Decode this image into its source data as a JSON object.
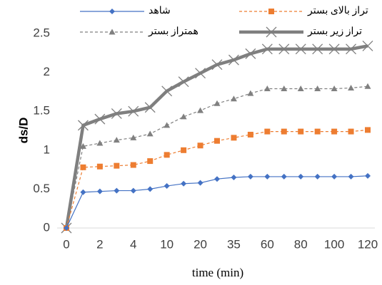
{
  "chart_data": {
    "type": "line",
    "x_label": "time (min)",
    "y_label": "ds/D",
    "categories": [
      "0",
      null,
      "2",
      null,
      "4",
      null,
      "10",
      null,
      "20",
      null,
      "35",
      null,
      "60",
      null,
      "80",
      null,
      "100",
      null,
      "120"
    ],
    "ylim": [
      0,
      2.5
    ],
    "yticks": [
      0,
      0.5,
      1,
      1.5,
      2,
      2.5
    ],
    "grid": false,
    "legend": "top",
    "series": [
      {
        "name": "شاهد",
        "color": "#4472c4",
        "marker": "diamond",
        "dash": "solid",
        "width": 1.2,
        "values": [
          0,
          0.46,
          0.47,
          0.48,
          0.48,
          0.5,
          0.54,
          0.57,
          0.58,
          0.63,
          0.65,
          0.66,
          0.66,
          0.66,
          0.66,
          0.66,
          0.66,
          0.66,
          0.67
        ]
      },
      {
        "name": "تراز بالای بستر",
        "color": "#ed7d31",
        "marker": "square",
        "dash": "dashed",
        "width": 1.2,
        "values": [
          0,
          0.78,
          0.79,
          0.8,
          0.81,
          0.86,
          0.94,
          1.0,
          1.06,
          1.12,
          1.16,
          1.2,
          1.24,
          1.24,
          1.24,
          1.24,
          1.24,
          1.24,
          1.26
        ]
      },
      {
        "name": "همتراز بستر",
        "color": "#808080",
        "marker": "triangle",
        "dash": "dashed",
        "width": 1.2,
        "values": [
          0,
          1.05,
          1.09,
          1.13,
          1.16,
          1.21,
          1.32,
          1.43,
          1.51,
          1.6,
          1.66,
          1.73,
          1.79,
          1.79,
          1.79,
          1.79,
          1.79,
          1.8,
          1.82
        ]
      },
      {
        "name": "تراز زیر بستر",
        "color": "#7f7f7f",
        "marker": "x",
        "dash": "solid",
        "width": 4.5,
        "values": [
          0,
          1.32,
          1.4,
          1.47,
          1.5,
          1.55,
          1.76,
          1.88,
          1.99,
          2.1,
          2.16,
          2.24,
          2.3,
          2.3,
          2.3,
          2.3,
          2.3,
          2.3,
          2.34
        ]
      }
    ]
  }
}
